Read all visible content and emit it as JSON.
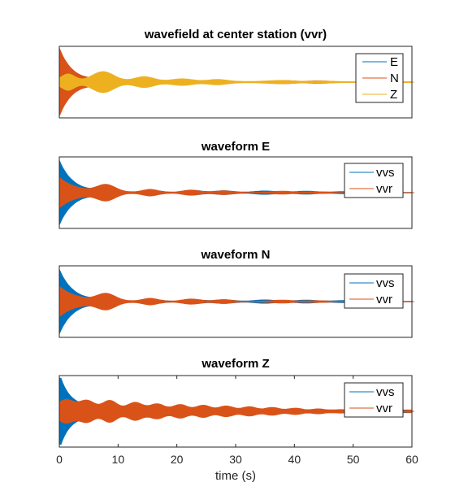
{
  "chart_data": [
    {
      "type": "line",
      "title": "wavefield at center station (vvr)",
      "xlim": [
        0,
        60
      ],
      "legend_position": "top-right",
      "series": [
        {
          "name": "E",
          "color": "#0072BD"
        },
        {
          "name": "N",
          "color": "#D95319"
        },
        {
          "name": "Z",
          "color": "#EDB120"
        }
      ]
    },
    {
      "type": "line",
      "title": "waveform E",
      "xlim": [
        0,
        60
      ],
      "legend_position": "top-right",
      "series": [
        {
          "name": "vvs",
          "color": "#0072BD"
        },
        {
          "name": "vvr",
          "color": "#D95319"
        }
      ]
    },
    {
      "type": "line",
      "title": "waveform N",
      "xlim": [
        0,
        60
      ],
      "legend_position": "top-right",
      "series": [
        {
          "name": "vvs",
          "color": "#0072BD"
        },
        {
          "name": "vvr",
          "color": "#D95319"
        }
      ]
    },
    {
      "type": "line",
      "title": "waveform Z",
      "xlim": [
        0,
        60
      ],
      "xticks": [
        0,
        10,
        20,
        30,
        40,
        50,
        60
      ],
      "xlabel": "time (s)",
      "legend_position": "top-right",
      "series": [
        {
          "name": "vvs",
          "color": "#0072BD"
        },
        {
          "name": "vvr",
          "color": "#D95319"
        }
      ]
    }
  ]
}
